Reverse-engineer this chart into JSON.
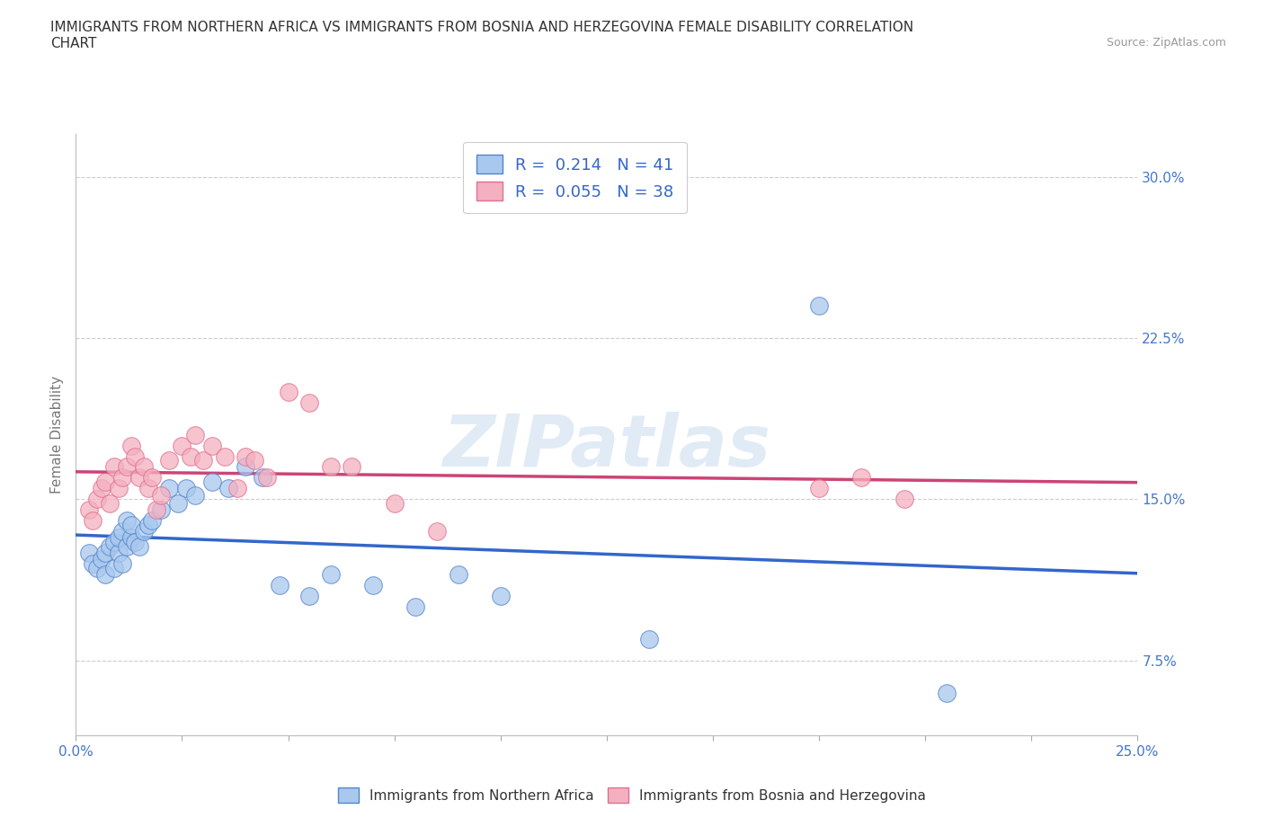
{
  "title_line1": "IMMIGRANTS FROM NORTHERN AFRICA VS IMMIGRANTS FROM BOSNIA AND HERZEGOVINA FEMALE DISABILITY CORRELATION",
  "title_line2": "CHART",
  "source": "Source: ZipAtlas.com",
  "ylabel": "Female Disability",
  "xlim": [
    0.0,
    0.25
  ],
  "ylim": [
    0.04,
    0.32
  ],
  "xticks": [
    0.0,
    0.025,
    0.05,
    0.075,
    0.1,
    0.125,
    0.15,
    0.175,
    0.2,
    0.225,
    0.25
  ],
  "xtick_labels": [
    "0.0%",
    "",
    "",
    "",
    "",
    "",
    "",
    "",
    "",
    "",
    "25.0%"
  ],
  "yticks": [
    0.075,
    0.15,
    0.225,
    0.3
  ],
  "ytick_labels": [
    "7.5%",
    "15.0%",
    "22.5%",
    "30.0%"
  ],
  "blue_R": 0.214,
  "blue_N": 41,
  "pink_R": 0.055,
  "pink_N": 38,
  "blue_color": "#a8c8ee",
  "pink_color": "#f4b0c0",
  "blue_edge_color": "#5585c8",
  "pink_edge_color": "#e07090",
  "blue_line_color": "#3366cc",
  "pink_line_color": "#cc4477",
  "label_color": "#4477cc",
  "watermark": "ZIPatlas",
  "blue_scatter_x": [
    0.003,
    0.004,
    0.005,
    0.006,
    0.007,
    0.007,
    0.008,
    0.009,
    0.009,
    0.01,
    0.01,
    0.011,
    0.011,
    0.012,
    0.012,
    0.013,
    0.013,
    0.014,
    0.015,
    0.016,
    0.017,
    0.018,
    0.02,
    0.022,
    0.024,
    0.026,
    0.028,
    0.032,
    0.036,
    0.04,
    0.044,
    0.048,
    0.055,
    0.06,
    0.07,
    0.08,
    0.09,
    0.1,
    0.135,
    0.175,
    0.205
  ],
  "blue_scatter_y": [
    0.125,
    0.12,
    0.118,
    0.122,
    0.115,
    0.125,
    0.128,
    0.118,
    0.13,
    0.125,
    0.132,
    0.12,
    0.135,
    0.128,
    0.14,
    0.132,
    0.138,
    0.13,
    0.128,
    0.135,
    0.138,
    0.14,
    0.145,
    0.155,
    0.148,
    0.155,
    0.152,
    0.158,
    0.155,
    0.165,
    0.16,
    0.11,
    0.105,
    0.115,
    0.11,
    0.1,
    0.115,
    0.105,
    0.085,
    0.24,
    0.06
  ],
  "pink_scatter_x": [
    0.003,
    0.004,
    0.005,
    0.006,
    0.007,
    0.008,
    0.009,
    0.01,
    0.011,
    0.012,
    0.013,
    0.014,
    0.015,
    0.016,
    0.017,
    0.018,
    0.019,
    0.02,
    0.022,
    0.025,
    0.027,
    0.028,
    0.03,
    0.032,
    0.035,
    0.038,
    0.04,
    0.042,
    0.045,
    0.05,
    0.055,
    0.06,
    0.065,
    0.075,
    0.085,
    0.175,
    0.185,
    0.195
  ],
  "pink_scatter_y": [
    0.145,
    0.14,
    0.15,
    0.155,
    0.158,
    0.148,
    0.165,
    0.155,
    0.16,
    0.165,
    0.175,
    0.17,
    0.16,
    0.165,
    0.155,
    0.16,
    0.145,
    0.152,
    0.168,
    0.175,
    0.17,
    0.18,
    0.168,
    0.175,
    0.17,
    0.155,
    0.17,
    0.168,
    0.16,
    0.2,
    0.195,
    0.165,
    0.165,
    0.148,
    0.135,
    0.155,
    0.16,
    0.15
  ]
}
